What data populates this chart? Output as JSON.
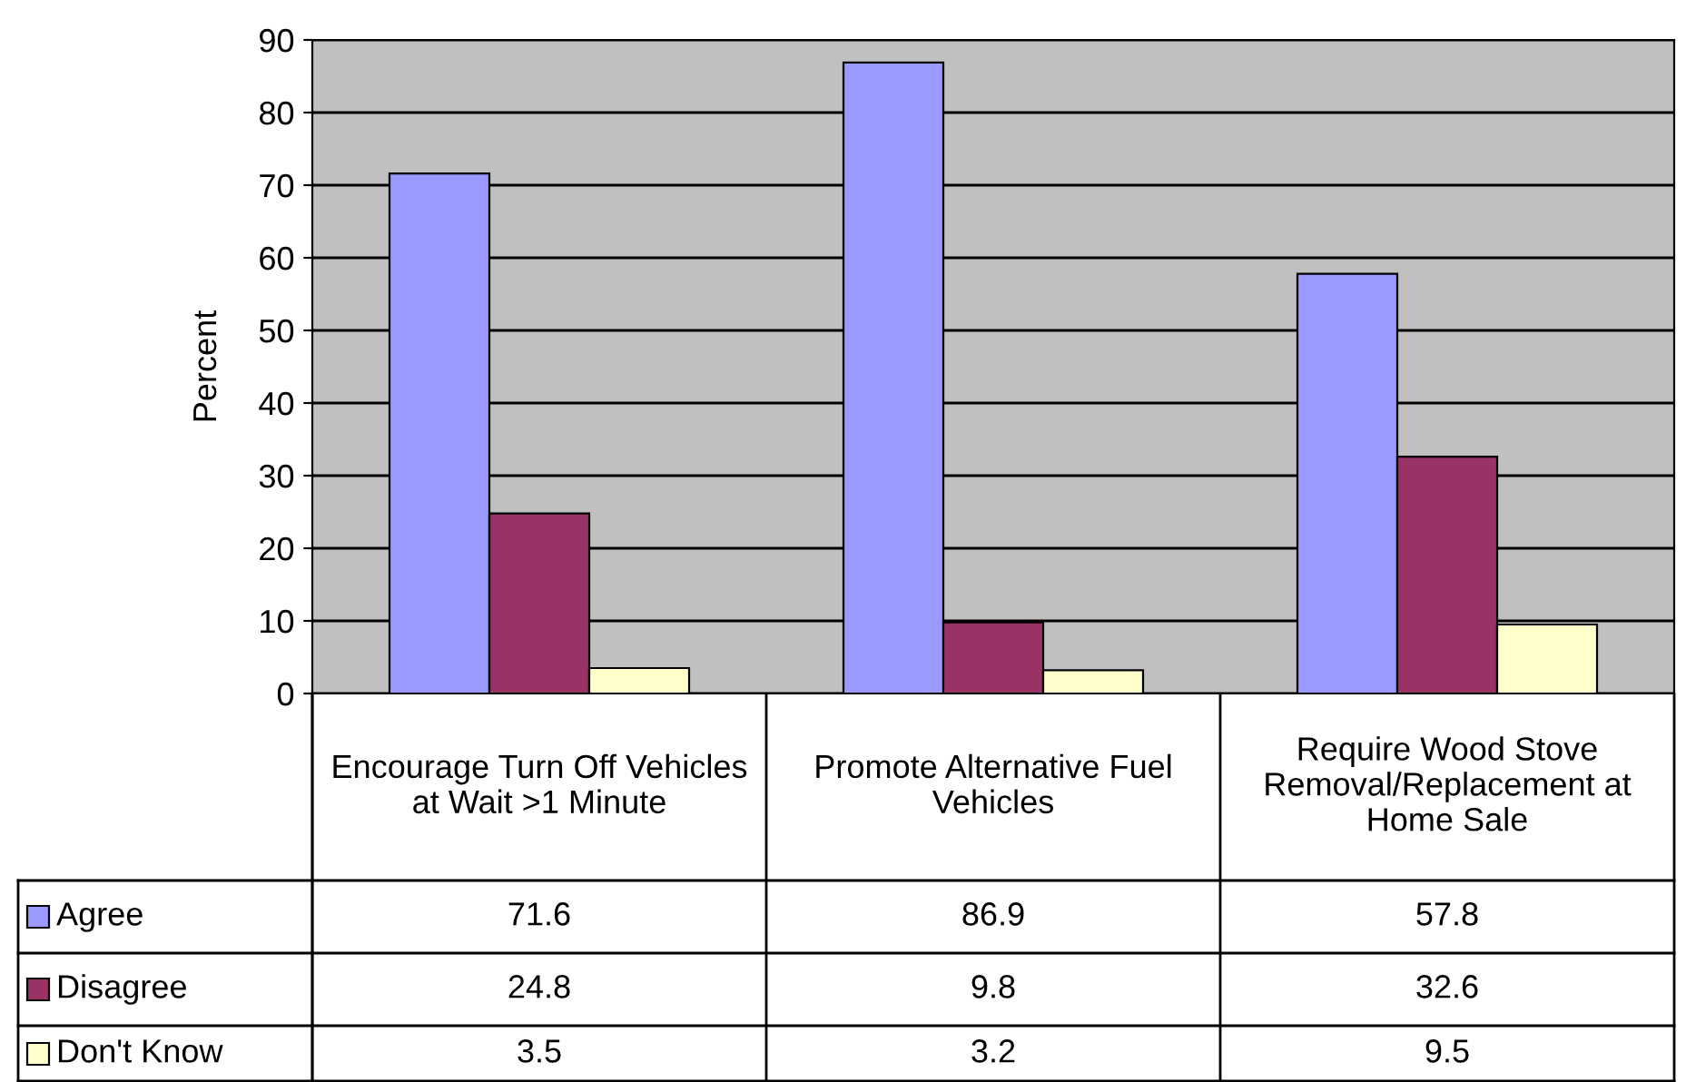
{
  "chart_data": {
    "type": "bar",
    "ylabel": "Percent",
    "categories": [
      "Encourage Turn Off Vehicles at Wait >1 Minute",
      "Promote Alternative Fuel Vehicles",
      "Require Wood Stove Removal/Replacement at Home Sale"
    ],
    "series": [
      {
        "name": "Agree",
        "color": "#9999ff",
        "values": [
          71.6,
          86.9,
          57.8
        ]
      },
      {
        "name": "Disagree",
        "color": "#993366",
        "values": [
          24.8,
          9.8,
          32.6
        ]
      },
      {
        "name": "Don't Know",
        "color": "#ffffcc",
        "values": [
          3.5,
          3.2,
          9.5
        ]
      }
    ],
    "ylim": [
      0,
      90
    ],
    "yticks": [
      0,
      10,
      20,
      30,
      40,
      50,
      60,
      70,
      80,
      90
    ],
    "grid": "y",
    "legend": "bottom left",
    "data_labels": true
  }
}
